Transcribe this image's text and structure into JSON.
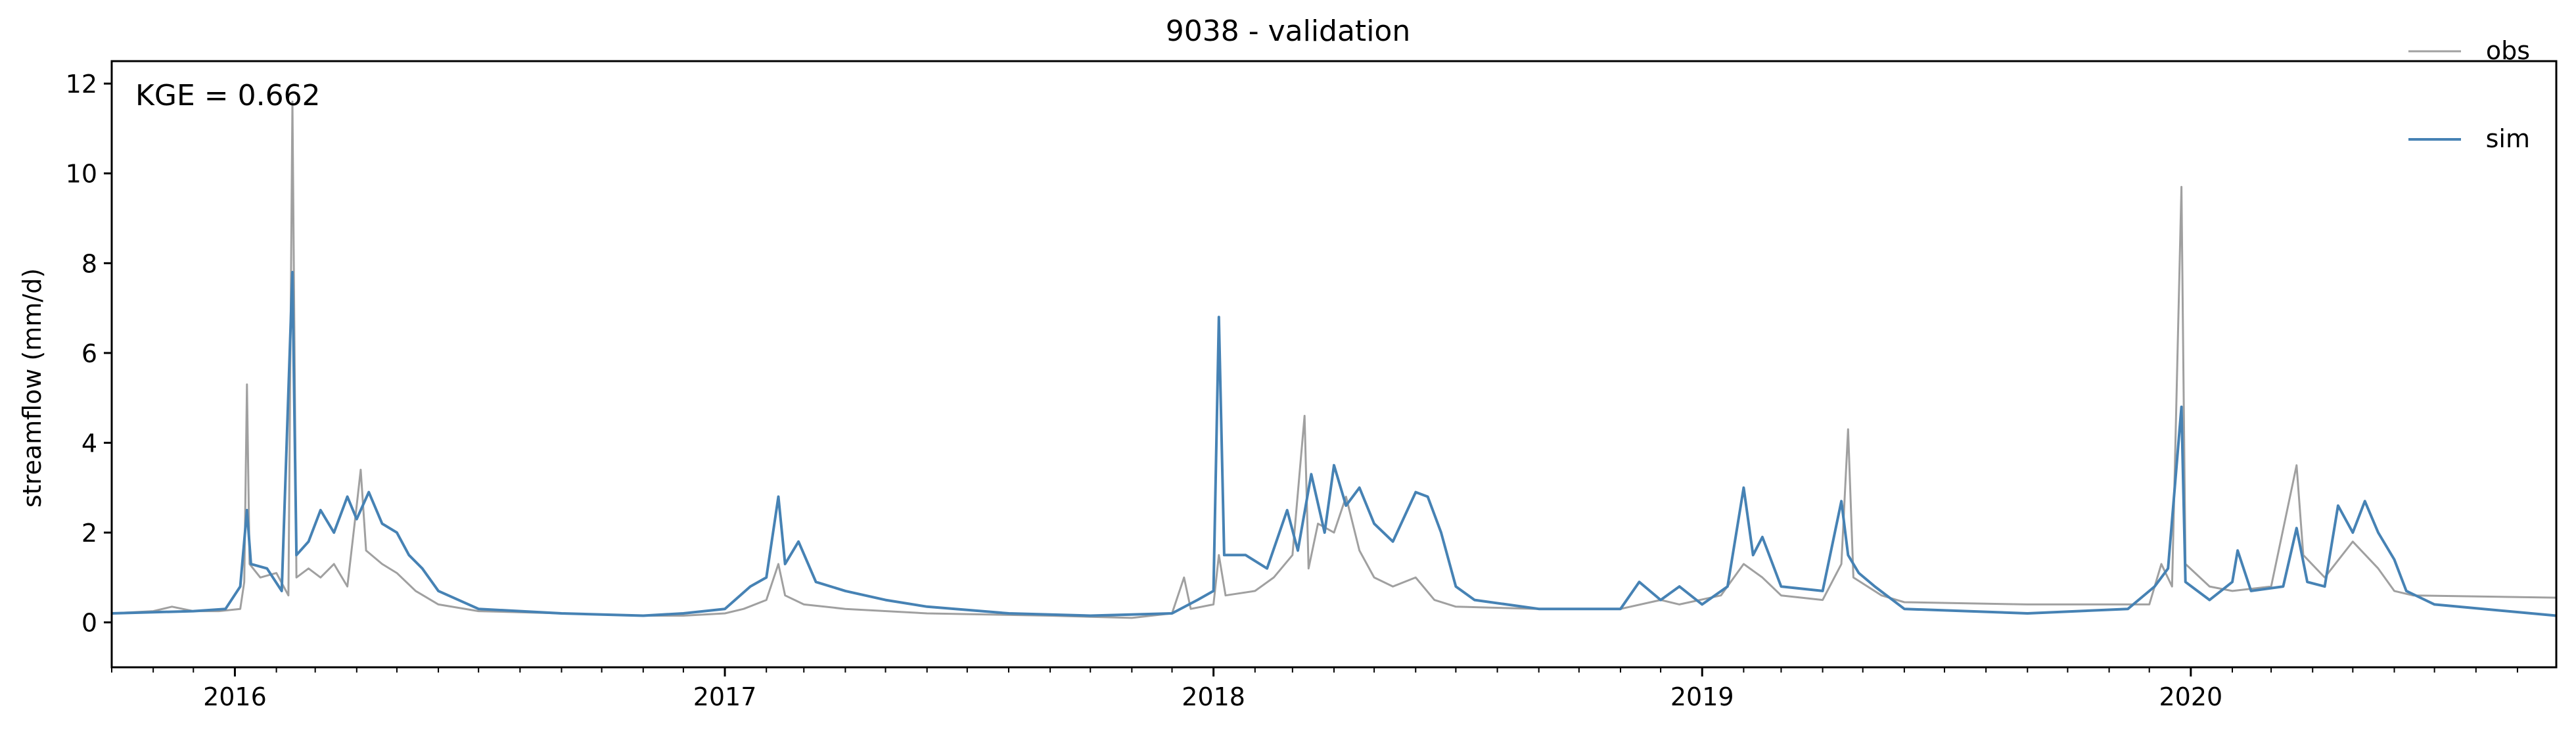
{
  "chart_data": {
    "type": "line",
    "title": "9038 - validation",
    "xlabel": "",
    "ylabel": "streamflow (mm/d)",
    "annotation": "KGE = 0.662",
    "xlim": [
      "2015-10-01",
      "2020-09-30"
    ],
    "ylim": [
      -1,
      12.5
    ],
    "y_ticks": [
      0,
      2,
      4,
      6,
      8,
      10,
      12
    ],
    "x_major_ticks": [
      "2016-01-01",
      "2017-01-01",
      "2018-01-01",
      "2019-01-01",
      "2020-01-01"
    ],
    "x_major_labels": [
      "2016",
      "2017",
      "2018",
      "2019",
      "2020"
    ],
    "x_minor_tick_months": [
      1,
      2,
      3,
      4,
      5,
      6,
      7,
      8,
      9,
      10,
      11,
      12
    ],
    "grid": false,
    "legend": {
      "placement": "top-right",
      "frame": false
    },
    "series": [
      {
        "name": "obs",
        "color": "#a0a0a0",
        "points": [
          [
            "2015-10-01",
            0.2
          ],
          [
            "2015-11-01",
            0.25
          ],
          [
            "2015-11-15",
            0.35
          ],
          [
            "2015-12-01",
            0.25
          ],
          [
            "2015-12-20",
            0.25
          ],
          [
            "2016-01-05",
            0.3
          ],
          [
            "2016-01-08",
            0.9
          ],
          [
            "2016-01-10",
            5.3
          ],
          [
            "2016-01-12",
            1.3
          ],
          [
            "2016-01-20",
            1.0
          ],
          [
            "2016-02-01",
            1.1
          ],
          [
            "2016-02-10",
            0.6
          ],
          [
            "2016-02-13",
            11.6
          ],
          [
            "2016-02-16",
            1.0
          ],
          [
            "2016-02-25",
            1.2
          ],
          [
            "2016-03-05",
            1.0
          ],
          [
            "2016-03-15",
            1.3
          ],
          [
            "2016-03-25",
            0.8
          ],
          [
            "2016-04-01",
            2.6
          ],
          [
            "2016-04-04",
            3.4
          ],
          [
            "2016-04-08",
            1.6
          ],
          [
            "2016-04-20",
            1.3
          ],
          [
            "2016-05-01",
            1.1
          ],
          [
            "2016-05-15",
            0.7
          ],
          [
            "2016-06-01",
            0.4
          ],
          [
            "2016-07-01",
            0.25
          ],
          [
            "2016-09-01",
            0.2
          ],
          [
            "2016-11-01",
            0.15
          ],
          [
            "2016-12-01",
            0.15
          ],
          [
            "2017-01-01",
            0.2
          ],
          [
            "2017-01-15",
            0.3
          ],
          [
            "2017-02-01",
            0.5
          ],
          [
            "2017-02-10",
            1.3
          ],
          [
            "2017-02-15",
            0.6
          ],
          [
            "2017-03-01",
            0.4
          ],
          [
            "2017-04-01",
            0.3
          ],
          [
            "2017-06-01",
            0.2
          ],
          [
            "2017-09-01",
            0.15
          ],
          [
            "2017-11-01",
            0.1
          ],
          [
            "2017-12-01",
            0.2
          ],
          [
            "2017-12-10",
            1.0
          ],
          [
            "2017-12-15",
            0.3
          ],
          [
            "2018-01-01",
            0.4
          ],
          [
            "2018-01-05",
            1.5
          ],
          [
            "2018-01-10",
            0.6
          ],
          [
            "2018-02-01",
            0.7
          ],
          [
            "2018-02-15",
            1.0
          ],
          [
            "2018-03-01",
            1.5
          ],
          [
            "2018-03-10",
            4.6
          ],
          [
            "2018-03-13",
            1.2
          ],
          [
            "2018-03-20",
            2.2
          ],
          [
            "2018-04-01",
            2.0
          ],
          [
            "2018-04-10",
            2.8
          ],
          [
            "2018-04-20",
            1.6
          ],
          [
            "2018-05-01",
            1.0
          ],
          [
            "2018-05-15",
            0.8
          ],
          [
            "2018-06-01",
            1.0
          ],
          [
            "2018-06-15",
            0.5
          ],
          [
            "2018-07-01",
            0.35
          ],
          [
            "2018-09-01",
            0.3
          ],
          [
            "2018-11-01",
            0.3
          ],
          [
            "2018-12-01",
            0.5
          ],
          [
            "2018-12-15",
            0.4
          ],
          [
            "2019-01-15",
            0.6
          ],
          [
            "2019-02-01",
            1.3
          ],
          [
            "2019-02-15",
            1.0
          ],
          [
            "2019-03-01",
            0.6
          ],
          [
            "2019-04-01",
            0.5
          ],
          [
            "2019-04-15",
            1.3
          ],
          [
            "2019-04-20",
            4.3
          ],
          [
            "2019-04-24",
            1.0
          ],
          [
            "2019-05-15",
            0.6
          ],
          [
            "2019-06-01",
            0.45
          ],
          [
            "2019-09-01",
            0.4
          ],
          [
            "2019-12-01",
            0.4
          ],
          [
            "2019-12-10",
            1.3
          ],
          [
            "2019-12-18",
            0.8
          ],
          [
            "2019-12-25",
            9.7
          ],
          [
            "2019-12-28",
            1.3
          ],
          [
            "2020-01-15",
            0.8
          ],
          [
            "2020-02-01",
            0.7
          ],
          [
            "2020-03-01",
            0.8
          ],
          [
            "2020-03-20",
            3.5
          ],
          [
            "2020-03-25",
            1.5
          ],
          [
            "2020-04-10",
            1.0
          ],
          [
            "2020-05-01",
            1.8
          ],
          [
            "2020-05-20",
            1.2
          ],
          [
            "2020-06-01",
            0.7
          ],
          [
            "2020-06-15",
            0.6
          ],
          [
            "2020-09-30",
            0.55
          ]
        ]
      },
      {
        "name": "sim",
        "color": "#4682b4",
        "points": [
          [
            "2015-10-01",
            0.2
          ],
          [
            "2015-12-01",
            0.25
          ],
          [
            "2015-12-25",
            0.3
          ],
          [
            "2016-01-05",
            0.8
          ],
          [
            "2016-01-10",
            2.5
          ],
          [
            "2016-01-13",
            1.3
          ],
          [
            "2016-01-25",
            1.2
          ],
          [
            "2016-02-05",
            0.7
          ],
          [
            "2016-02-13",
            7.8
          ],
          [
            "2016-02-16",
            1.5
          ],
          [
            "2016-02-25",
            1.8
          ],
          [
            "2016-03-05",
            2.5
          ],
          [
            "2016-03-15",
            2.0
          ],
          [
            "2016-03-25",
            2.8
          ],
          [
            "2016-04-01",
            2.3
          ],
          [
            "2016-04-10",
            2.9
          ],
          [
            "2016-04-20",
            2.2
          ],
          [
            "2016-05-01",
            2.0
          ],
          [
            "2016-05-10",
            1.5
          ],
          [
            "2016-05-20",
            1.2
          ],
          [
            "2016-06-01",
            0.7
          ],
          [
            "2016-07-01",
            0.3
          ],
          [
            "2016-09-01",
            0.2
          ],
          [
            "2016-11-01",
            0.15
          ],
          [
            "2016-12-01",
            0.2
          ],
          [
            "2017-01-01",
            0.3
          ],
          [
            "2017-01-20",
            0.8
          ],
          [
            "2017-02-01",
            1.0
          ],
          [
            "2017-02-10",
            2.8
          ],
          [
            "2017-02-15",
            1.3
          ],
          [
            "2017-02-25",
            1.8
          ],
          [
            "2017-03-10",
            0.9
          ],
          [
            "2017-04-01",
            0.7
          ],
          [
            "2017-05-01",
            0.5
          ],
          [
            "2017-06-01",
            0.35
          ],
          [
            "2017-08-01",
            0.2
          ],
          [
            "2017-10-01",
            0.15
          ],
          [
            "2017-12-01",
            0.2
          ],
          [
            "2017-12-20",
            0.5
          ],
          [
            "2018-01-01",
            0.7
          ],
          [
            "2018-01-05",
            6.8
          ],
          [
            "2018-01-09",
            1.5
          ],
          [
            "2018-01-25",
            1.5
          ],
          [
            "2018-02-10",
            1.2
          ],
          [
            "2018-02-25",
            2.5
          ],
          [
            "2018-03-05",
            1.6
          ],
          [
            "2018-03-15",
            3.3
          ],
          [
            "2018-03-25",
            2.0
          ],
          [
            "2018-04-01",
            3.5
          ],
          [
            "2018-04-10",
            2.6
          ],
          [
            "2018-04-20",
            3.0
          ],
          [
            "2018-05-01",
            2.2
          ],
          [
            "2018-05-15",
            1.8
          ],
          [
            "2018-06-01",
            2.9
          ],
          [
            "2018-06-10",
            2.8
          ],
          [
            "2018-06-20",
            2.0
          ],
          [
            "2018-07-01",
            0.8
          ],
          [
            "2018-07-15",
            0.5
          ],
          [
            "2018-09-01",
            0.3
          ],
          [
            "2018-11-01",
            0.3
          ],
          [
            "2018-11-15",
            0.9
          ],
          [
            "2018-12-01",
            0.5
          ],
          [
            "2018-12-15",
            0.8
          ],
          [
            "2019-01-01",
            0.4
          ],
          [
            "2019-01-20",
            0.8
          ],
          [
            "2019-02-01",
            3.0
          ],
          [
            "2019-02-08",
            1.5
          ],
          [
            "2019-02-15",
            1.9
          ],
          [
            "2019-03-01",
            0.8
          ],
          [
            "2019-04-01",
            0.7
          ],
          [
            "2019-04-15",
            2.7
          ],
          [
            "2019-04-20",
            1.5
          ],
          [
            "2019-04-28",
            1.1
          ],
          [
            "2019-05-10",
            0.8
          ],
          [
            "2019-06-01",
            0.3
          ],
          [
            "2019-09-01",
            0.2
          ],
          [
            "2019-11-15",
            0.3
          ],
          [
            "2019-12-05",
            0.8
          ],
          [
            "2019-12-15",
            1.2
          ],
          [
            "2019-12-25",
            4.8
          ],
          [
            "2019-12-28",
            0.9
          ],
          [
            "2020-01-15",
            0.5
          ],
          [
            "2020-02-01",
            0.9
          ],
          [
            "2020-02-05",
            1.6
          ],
          [
            "2020-02-15",
            0.7
          ],
          [
            "2020-03-10",
            0.8
          ],
          [
            "2020-03-20",
            2.1
          ],
          [
            "2020-03-28",
            0.9
          ],
          [
            "2020-04-10",
            0.8
          ],
          [
            "2020-04-20",
            2.6
          ],
          [
            "2020-05-01",
            2.0
          ],
          [
            "2020-05-10",
            2.7
          ],
          [
            "2020-05-20",
            2.0
          ],
          [
            "2020-06-01",
            1.4
          ],
          [
            "2020-06-10",
            0.7
          ],
          [
            "2020-07-01",
            0.4
          ],
          [
            "2020-09-30",
            0.15
          ]
        ]
      }
    ]
  }
}
